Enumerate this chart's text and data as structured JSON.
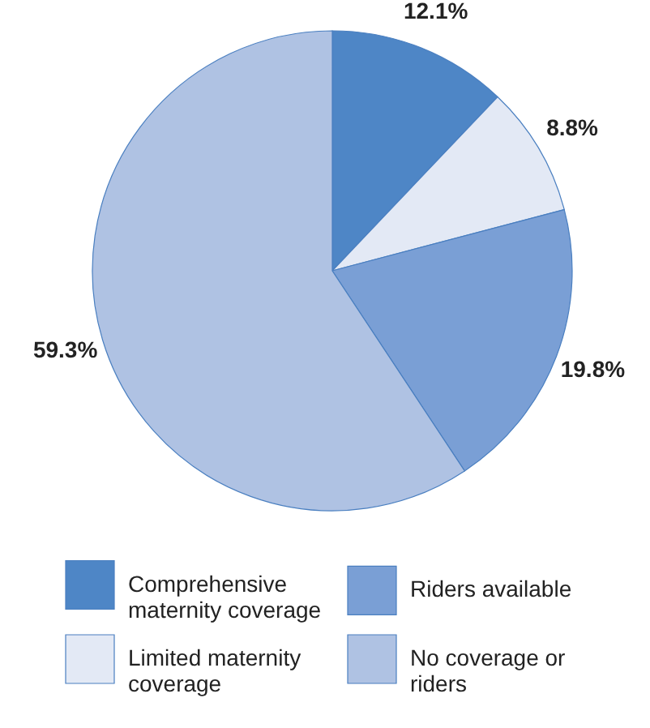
{
  "chart_data": {
    "type": "pie",
    "categories": [
      "Comprehensive maternity coverage",
      "Limited maternity coverage",
      "Riders available",
      "No coverage or riders"
    ],
    "values": [
      12.1,
      8.8,
      19.8,
      59.3
    ],
    "colors": [
      "#4e86c6",
      "#e3e9f5",
      "#7a9fd5",
      "#afc2e3"
    ],
    "value_labels": [
      "12.1%",
      "8.8%",
      "19.8%",
      "59.3%"
    ],
    "legend": "bottom"
  }
}
